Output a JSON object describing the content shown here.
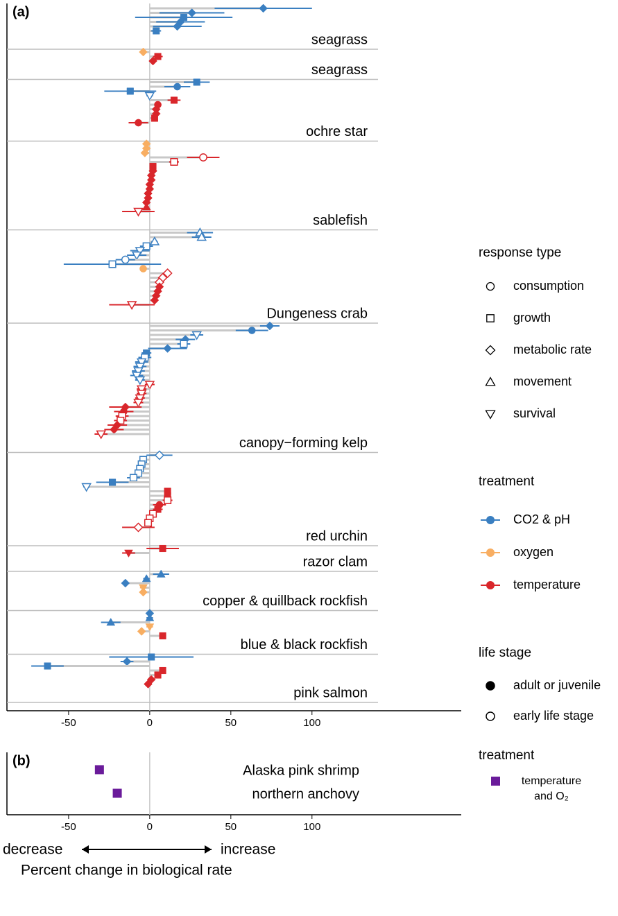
{
  "chart_data": [
    {
      "type": "dot-whisker",
      "panel_label": "(a)",
      "xlim": [
        -88,
        192
      ],
      "xticks": [
        -50,
        0,
        50,
        100
      ],
      "legend": {
        "response_title": "response type",
        "responses": [
          "consumption",
          "growth",
          "metabolic rate",
          "movement",
          "survival"
        ],
        "treatment_title": "treatment",
        "treatments": [
          {
            "name": "CO2 & pH",
            "color": "#3a7fc1"
          },
          {
            "name": "oxygen",
            "color": "#f8ae62"
          },
          {
            "name": "temperature",
            "color": "#d9262b"
          }
        ],
        "stage_title": "life stage",
        "stages": [
          "adult or juvenile",
          "early life stage"
        ]
      },
      "groups": [
        {
          "label": "seagrass",
          "points": [
            [
              70,
              30,
              2,
              0,
              0
            ],
            [
              26,
              20,
              2,
              0,
              0
            ],
            [
              21,
              30,
              1,
              0,
              0
            ],
            [
              19,
              15,
              2,
              0,
              0
            ],
            [
              17,
              15,
              2,
              0,
              0
            ],
            [
              4,
              3,
              1,
              0,
              0
            ]
          ]
        },
        {
          "label": "seagrass",
          "points": [
            [
              -4,
              2,
              2,
              1,
              0
            ],
            [
              5,
              3,
              1,
              2,
              0
            ],
            [
              2,
              2,
              2,
              2,
              0
            ]
          ]
        },
        {
          "label": "ochre star",
          "points": [
            [
              29,
              8,
              1,
              0,
              0
            ],
            [
              17,
              8,
              0,
              0,
              0
            ],
            [
              -12,
              16,
              1,
              0,
              0
            ],
            [
              0,
              2,
              4,
              0,
              1
            ],
            [
              15,
              4,
              1,
              2,
              0
            ],
            [
              5,
              2,
              0,
              2,
              0
            ],
            [
              4,
              2,
              2,
              2,
              0
            ],
            [
              4,
              2,
              2,
              2,
              0
            ],
            [
              3,
              2,
              1,
              2,
              0
            ],
            [
              -7,
              6,
              0,
              2,
              0
            ]
          ]
        },
        {
          "label": "sablefish",
          "points": [
            [
              -2,
              2,
              2,
              1,
              0
            ],
            [
              -2,
              2,
              2,
              1,
              0
            ],
            [
              -3,
              2,
              2,
              1,
              0
            ],
            [
              33,
              10,
              0,
              2,
              1
            ],
            [
              15,
              3,
              1,
              2,
              1
            ],
            [
              2,
              1,
              1,
              2,
              0
            ],
            [
              2,
              1,
              2,
              2,
              0
            ],
            [
              1,
              1,
              2,
              2,
              0
            ],
            [
              1,
              1,
              2,
              2,
              0
            ],
            [
              0,
              1,
              2,
              2,
              0
            ],
            [
              0,
              1,
              2,
              2,
              0
            ],
            [
              -1,
              1,
              2,
              2,
              0
            ],
            [
              -1,
              1,
              2,
              2,
              0
            ],
            [
              -2,
              1,
              2,
              2,
              0
            ],
            [
              -2,
              1,
              3,
              2,
              0
            ],
            [
              -7,
              10,
              4,
              2,
              1
            ]
          ]
        },
        {
          "label": "Dungeness crab",
          "points": [
            [
              31,
              8,
              3,
              0,
              1
            ],
            [
              32,
              6,
              3,
              0,
              1
            ],
            [
              3,
              2,
              3,
              0,
              1
            ],
            [
              -2,
              4,
              1,
              0,
              1
            ],
            [
              -6,
              6,
              4,
              0,
              1
            ],
            [
              -8,
              6,
              4,
              0,
              1
            ],
            [
              -15,
              6,
              0,
              0,
              1
            ],
            [
              -23,
              30,
              1,
              0,
              1
            ],
            [
              -4,
              2,
              0,
              1,
              0
            ],
            [
              11,
              2,
              2,
              2,
              1
            ],
            [
              8,
              2,
              2,
              2,
              1
            ],
            [
              6,
              2,
              2,
              2,
              1
            ],
            [
              6,
              2,
              2,
              2,
              0
            ],
            [
              5,
              2,
              2,
              2,
              0
            ],
            [
              4,
              2,
              2,
              2,
              0
            ],
            [
              3,
              2,
              2,
              2,
              0
            ],
            [
              -11,
              14,
              4,
              2,
              1
            ]
          ]
        },
        {
          "label": "canopy−forming kelp",
          "points": [
            [
              74,
              6,
              2,
              0,
              0
            ],
            [
              63,
              10,
              0,
              0,
              0
            ],
            [
              29,
              4,
              4,
              0,
              1
            ],
            [
              22,
              6,
              2,
              0,
              0
            ],
            [
              21,
              4,
              1,
              0,
              1
            ],
            [
              11,
              12,
              2,
              0,
              0
            ],
            [
              -2,
              3,
              1,
              0,
              0
            ],
            [
              -3,
              4,
              1,
              0,
              1
            ],
            [
              -5,
              4,
              4,
              0,
              1
            ],
            [
              -6,
              4,
              4,
              0,
              1
            ],
            [
              -7,
              4,
              4,
              0,
              1
            ],
            [
              -8,
              4,
              4,
              0,
              1
            ],
            [
              -6,
              3,
              4,
              0,
              1
            ],
            [
              0,
              3,
              4,
              2,
              1
            ],
            [
              -5,
              3,
              4,
              2,
              1
            ],
            [
              -5,
              3,
              4,
              2,
              1
            ],
            [
              -6,
              3,
              4,
              2,
              1
            ],
            [
              -7,
              3,
              4,
              2,
              1
            ],
            [
              -15,
              10,
              2,
              2,
              0
            ],
            [
              -16,
              6,
              0,
              2,
              0
            ],
            [
              -17,
              4,
              1,
              2,
              1
            ],
            [
              -18,
              4,
              1,
              2,
              1
            ],
            [
              -20,
              6,
              2,
              2,
              0
            ],
            [
              -22,
              6,
              2,
              2,
              0
            ],
            [
              -30,
              4,
              4,
              2,
              1
            ]
          ]
        },
        {
          "label": "red urchin",
          "points": [
            [
              6,
              8,
              2,
              0,
              1
            ],
            [
              -4,
              2,
              1,
              0,
              1
            ],
            [
              -5,
              2,
              1,
              0,
              1
            ],
            [
              -6,
              2,
              1,
              0,
              1
            ],
            [
              -7,
              2,
              1,
              0,
              1
            ],
            [
              -10,
              4,
              1,
              0,
              1
            ],
            [
              -23,
              10,
              1,
              0,
              0
            ],
            [
              -39,
              2,
              4,
              0,
              1
            ],
            [
              11,
              2,
              1,
              2,
              0
            ],
            [
              11,
              2,
              1,
              2,
              0
            ],
            [
              11,
              3,
              1,
              2,
              1
            ],
            [
              6,
              4,
              0,
              2,
              0
            ],
            [
              5,
              3,
              1,
              2,
              0
            ],
            [
              2,
              2,
              1,
              2,
              1
            ],
            [
              0,
              2,
              1,
              2,
              1
            ],
            [
              -1,
              2,
              1,
              2,
              1
            ],
            [
              -7,
              10,
              2,
              2,
              1
            ]
          ]
        },
        {
          "label": "razor clam",
          "points": [
            [
              8,
              10,
              1,
              2,
              0
            ],
            [
              -13,
              4,
              4,
              2,
              0
            ]
          ]
        },
        {
          "label": "copper & quillback rockfish",
          "points": [
            [
              7,
              5,
              3,
              0,
              0
            ],
            [
              -2,
              2,
              3,
              0,
              0
            ],
            [
              -15,
              2,
              2,
              0,
              0
            ],
            [
              -4,
              2,
              4,
              1,
              0
            ],
            [
              -4,
              2,
              2,
              1,
              0
            ]
          ]
        },
        {
          "label": "blue & black rockfish",
          "points": [
            [
              0,
              2,
              2,
              0,
              0
            ],
            [
              0,
              2,
              3,
              0,
              0
            ],
            [
              -24,
              6,
              3,
              0,
              0
            ],
            [
              0,
              2,
              4,
              1,
              0
            ],
            [
              -5,
              2,
              2,
              1,
              0
            ],
            [
              8,
              2,
              1,
              2,
              0
            ]
          ]
        },
        {
          "label": "pink salmon",
          "points": [
            [
              1,
              26,
              1,
              0,
              0
            ],
            [
              -14,
              4,
              2,
              0,
              0
            ],
            [
              -63,
              10,
              1,
              0,
              0
            ],
            [
              8,
              2,
              1,
              2,
              0
            ],
            [
              5,
              2,
              1,
              2,
              0
            ],
            [
              1,
              2,
              2,
              2,
              0
            ],
            [
              -1,
              2,
              2,
              2,
              0
            ]
          ]
        }
      ]
    },
    {
      "type": "dot",
      "panel_label": "(b)",
      "xlim": [
        -88,
        192
      ],
      "xticks": [
        -50,
        0,
        50,
        100
      ],
      "categories": [
        "Alaska pink shrimp",
        "northern anchovy"
      ],
      "values": [
        -31,
        -20
      ],
      "color": "#6a1b9a",
      "legend_title": "treatment",
      "legend_label": [
        "temperature",
        "and O₂"
      ],
      "direction_labels": [
        "decrease",
        "increase"
      ],
      "x_label": "Percent change in biological rate"
    }
  ]
}
